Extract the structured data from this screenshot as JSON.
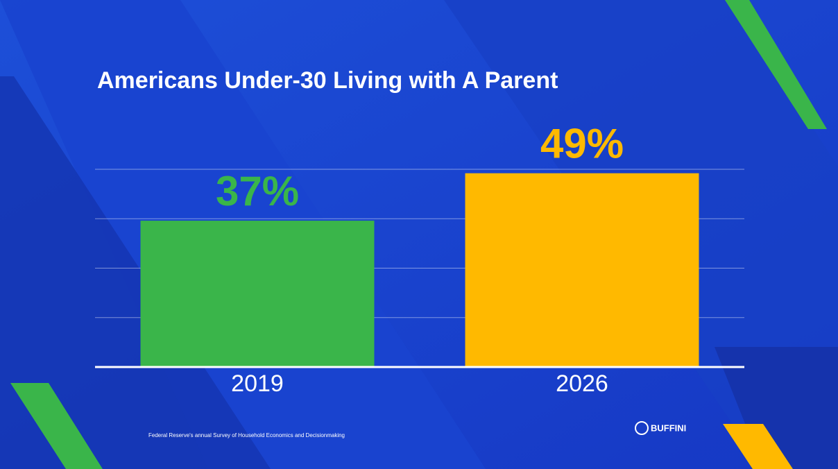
{
  "chart_data": {
    "type": "bar",
    "title": "Americans Under-30 Living with A Parent",
    "categories": [
      "2019",
      "2026"
    ],
    "values": [
      37,
      49
    ],
    "value_labels": [
      "37%",
      "49%"
    ],
    "colors": [
      "#3ab54a",
      "#ffb900"
    ],
    "ylim": [
      0,
      50
    ],
    "yticks": [
      0,
      12.5,
      25,
      37.5,
      50
    ],
    "grid": true,
    "source": "Federal Reserve's annual Survey of Household Economics and Decisionmaking",
    "brand": "BUFFINI"
  }
}
